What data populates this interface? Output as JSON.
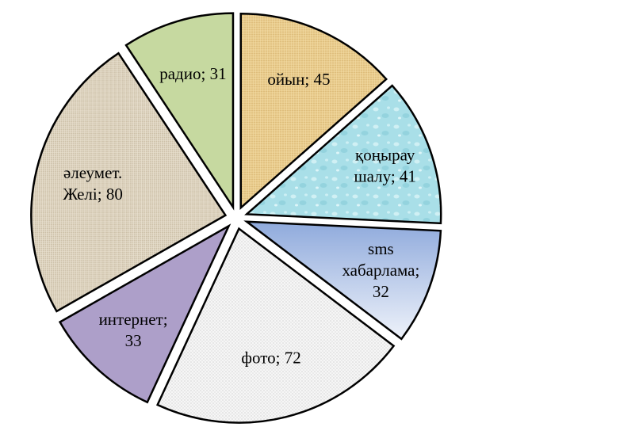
{
  "chart_data": {
    "type": "pie",
    "title": "",
    "start_angle_deg": 0,
    "direction": "clockwise",
    "slices": [
      {
        "label_lines": [
          "ойын; 45"
        ],
        "value": 45,
        "color": "#e8c98a",
        "texture": "canvas"
      },
      {
        "label_lines": [
          "қоңырау",
          "шалу; 41"
        ],
        "value": 41,
        "color": "#aee3ea",
        "texture": "water"
      },
      {
        "label_lines": [
          "sms",
          "хабарлама;",
          "32"
        ],
        "value": 32,
        "color": "#9bb3e0",
        "texture": "gradient"
      },
      {
        "label_lines": [
          "фото; 72"
        ],
        "value": 72,
        "color": "#f4f4f4",
        "texture": "dots"
      },
      {
        "label_lines": [
          "интернет;",
          "33"
        ],
        "value": 33,
        "color": "#ad9fc9",
        "texture": "none"
      },
      {
        "label_lines": [
          "әлеумет.",
          "Желі; 80"
        ],
        "value": 80,
        "color": "#ddd3c0",
        "texture": "burlap"
      },
      {
        "label_lines": [
          "радио; 31"
        ],
        "value": 31,
        "color": "#c6d9a0",
        "texture": "none"
      }
    ]
  }
}
